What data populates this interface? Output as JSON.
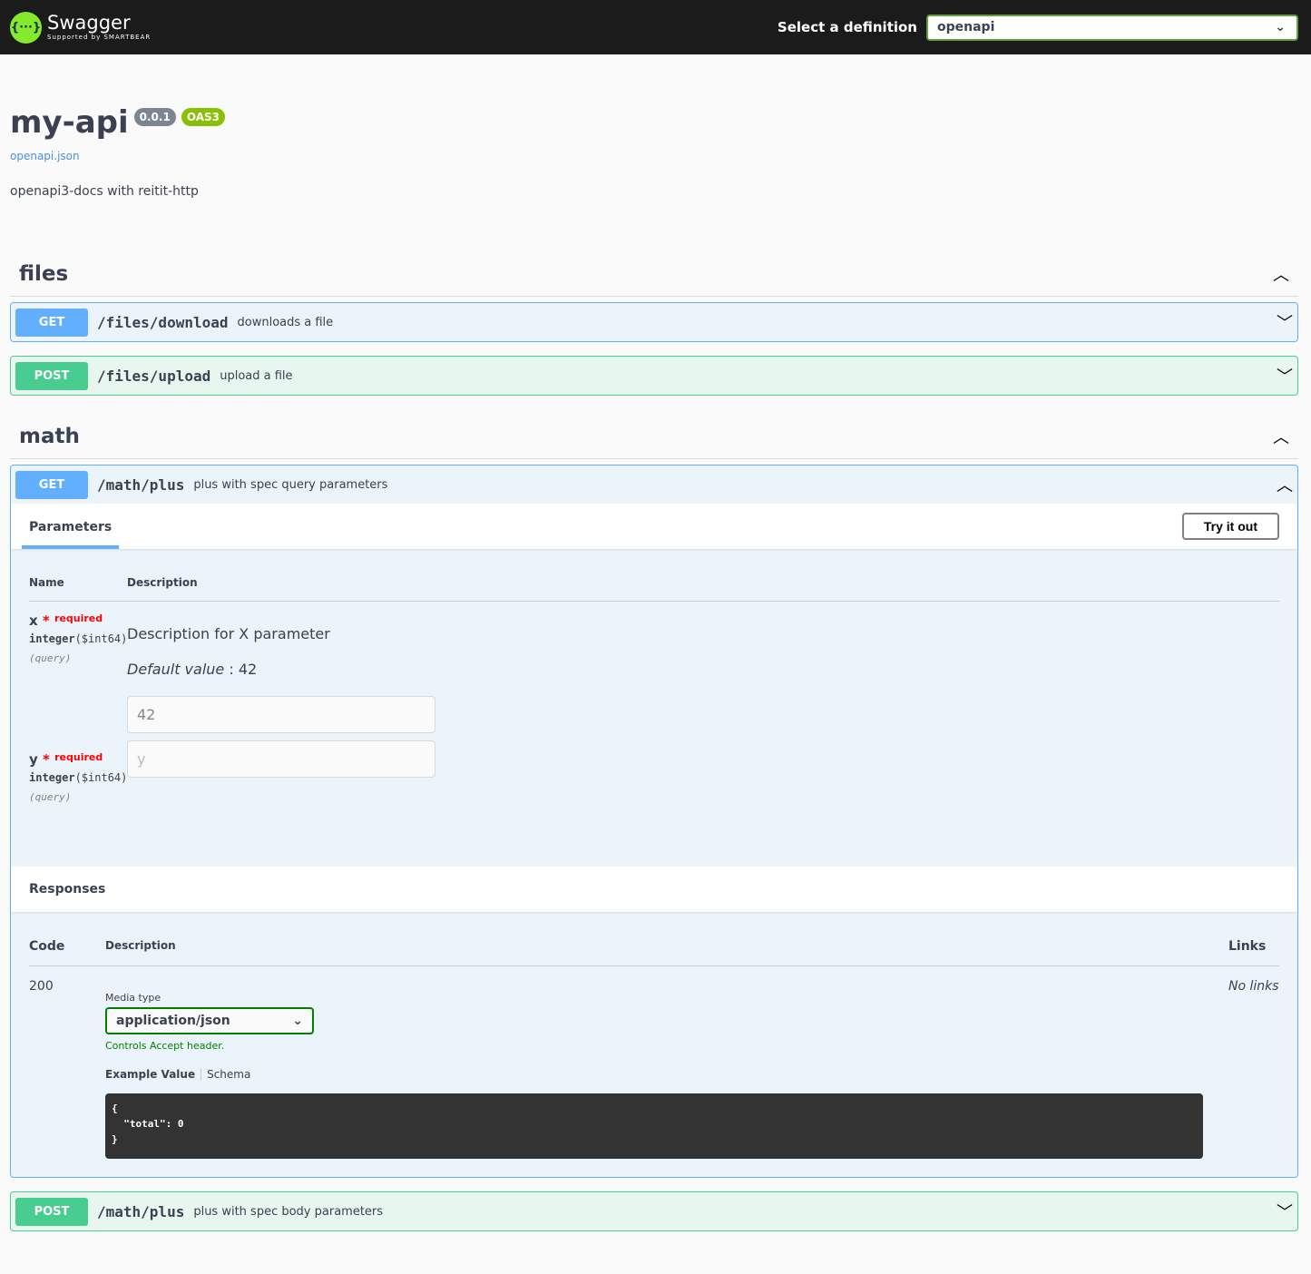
{
  "topbar": {
    "logo_name": "Swagger",
    "logo_sub": "Supported by SMARTBEAR",
    "logo_glyph": "{···}",
    "definition_label": "Select a definition",
    "definition_value": "openapi"
  },
  "info": {
    "title": "my-api",
    "version": "0.0.1",
    "oas": "OAS3",
    "spec_link": "openapi.json",
    "description": "openapi3-docs with reitit-http"
  },
  "tags": [
    {
      "name": "files",
      "ops": [
        {
          "method": "GET",
          "path": "/files/download",
          "summary": "downloads a file"
        },
        {
          "method": "POST",
          "path": "/files/upload",
          "summary": "upload a file"
        }
      ]
    },
    {
      "name": "math",
      "ops": [
        {
          "method": "GET",
          "path": "/math/plus",
          "summary": "plus with spec query parameters"
        },
        {
          "method": "POST",
          "path": "/math/plus",
          "summary": "plus with spec body parameters"
        }
      ]
    }
  ],
  "expanded": {
    "params_tab": "Parameters",
    "try_button": "Try it out",
    "col_name": "Name",
    "col_desc": "Description",
    "params": [
      {
        "name": "x",
        "required": "required",
        "type": "integer",
        "format": "($int64)",
        "in": "(query)",
        "description": "Description for X parameter",
        "default_label": "Default value",
        "default_value": ": 42",
        "value": "42"
      },
      {
        "name": "y",
        "required": "required",
        "type": "integer",
        "format": "($int64)",
        "in": "(query)",
        "placeholder": "y"
      }
    ],
    "responses_title": "Responses",
    "rcol_code": "Code",
    "rcol_desc": "Description",
    "rcol_links": "Links",
    "response": {
      "code": "200",
      "media_label": "Media type",
      "media_value": "application/json",
      "controls": "Controls Accept header.",
      "example_tab": "Example Value",
      "schema_tab": "Schema",
      "example": "{\n  \"total\": 0\n}",
      "links": "No links"
    }
  }
}
